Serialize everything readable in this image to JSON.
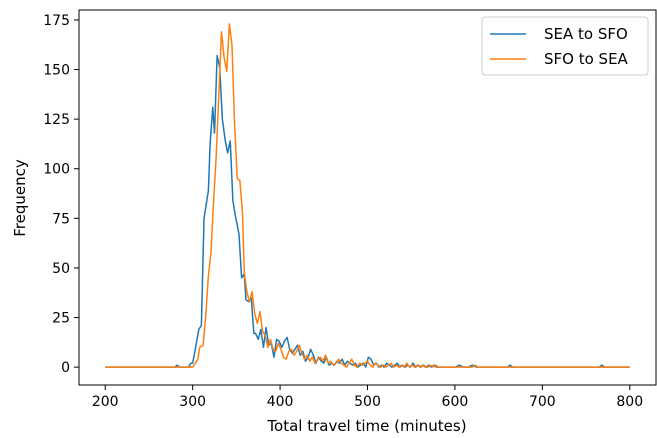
{
  "chart_data": {
    "type": "line",
    "title": "",
    "xlabel": "Total travel time (minutes)",
    "ylabel": "Frequency",
    "xlim": [
      170,
      830
    ],
    "ylim": [
      -9,
      180
    ],
    "xticks": [
      200,
      300,
      400,
      500,
      600,
      700,
      800
    ],
    "yticks": [
      0,
      25,
      50,
      75,
      100,
      125,
      150,
      175
    ],
    "grid": false,
    "legend_position": "top-right",
    "series": [
      {
        "name": "SEA to SFO",
        "color": "#1f77b4",
        "x": [
          200,
          280,
          282,
          285,
          295,
          298,
          300,
          303,
          307,
          310,
          313,
          318,
          320,
          323,
          325,
          328,
          331,
          334,
          337,
          340,
          343,
          346,
          349,
          353,
          356,
          359,
          361,
          364,
          367,
          370,
          372,
          375,
          378,
          381,
          384,
          387,
          390,
          393,
          396,
          399,
          402,
          405,
          408,
          411,
          414,
          417,
          420,
          423,
          426,
          429,
          432,
          435,
          438,
          441,
          444,
          447,
          450,
          453,
          456,
          459,
          462,
          465,
          468,
          471,
          474,
          477,
          480,
          483,
          486,
          489,
          492,
          495,
          498,
          501,
          504,
          507,
          510,
          513,
          516,
          519,
          522,
          525,
          528,
          531,
          534,
          537,
          540,
          543,
          546,
          549,
          552,
          555,
          558,
          561,
          564,
          567,
          570,
          573,
          576,
          579,
          582,
          600,
          605,
          610,
          615,
          620,
          625,
          660,
          663,
          666,
          765,
          768,
          771,
          800
        ],
        "y": [
          0,
          0,
          1,
          0,
          0,
          2,
          2,
          9,
          19,
          21,
          75,
          89,
          113,
          131,
          118,
          157,
          151,
          125,
          115,
          108,
          114,
          84,
          76,
          67,
          45,
          47,
          34,
          33,
          35,
          17,
          17,
          14,
          19,
          10,
          20,
          11,
          12,
          5,
          14,
          13,
          10,
          13,
          15,
          9,
          7,
          9,
          11,
          6,
          8,
          3,
          5,
          9,
          6,
          2,
          5,
          3,
          2,
          5,
          1,
          2,
          1,
          3,
          2,
          4,
          1,
          3,
          2,
          1,
          2,
          0,
          1,
          2,
          0,
          5,
          4,
          1,
          2,
          0,
          1,
          0,
          2,
          1,
          0,
          1,
          2,
          0,
          1,
          0,
          1,
          0,
          2,
          0,
          1,
          0,
          1,
          0,
          1,
          0,
          1,
          0,
          0,
          0,
          1,
          0,
          0,
          1,
          0,
          0,
          1,
          0,
          0,
          1,
          0,
          0
        ]
      },
      {
        "name": "SFO to SEA",
        "color": "#ff7f0e",
        "x": [
          200,
          300,
          303,
          306,
          308,
          312,
          315,
          318,
          321,
          324,
          327,
          330,
          333,
          336,
          339,
          342,
          345,
          348,
          351,
          354,
          357,
          359,
          362,
          365,
          368,
          371,
          374,
          377,
          380,
          383,
          386,
          389,
          392,
          395,
          398,
          401,
          404,
          407,
          410,
          413,
          416,
          419,
          422,
          425,
          428,
          431,
          434,
          437,
          440,
          443,
          446,
          449,
          452,
          455,
          458,
          461,
          464,
          467,
          470,
          473,
          476,
          479,
          482,
          485,
          488,
          491,
          494,
          497,
          500,
          503,
          506,
          509,
          512,
          515,
          518,
          521,
          524,
          527,
          530,
          533,
          536,
          539,
          542,
          545,
          548,
          551,
          554,
          557,
          560,
          563,
          566,
          569,
          572,
          575,
          578,
          581,
          584,
          620,
          623,
          626,
          800
        ],
        "y": [
          0,
          0,
          2,
          4,
          10,
          11,
          26,
          46,
          58,
          84,
          107,
          138,
          169,
          156,
          149,
          173,
          162,
          122,
          95,
          94,
          78,
          48,
          38,
          33,
          38,
          27,
          22,
          28,
          18,
          16,
          10,
          14,
          9,
          8,
          12,
          9,
          5,
          4,
          8,
          9,
          6,
          8,
          11,
          7,
          4,
          6,
          3,
          5,
          2,
          4,
          5,
          3,
          6,
          2,
          3,
          1,
          2,
          4,
          2,
          1,
          0,
          2,
          4,
          1,
          0,
          2,
          1,
          2,
          3,
          1,
          0,
          2,
          1,
          0,
          1,
          0,
          1,
          2,
          0,
          1,
          0,
          1,
          0,
          2,
          0,
          1,
          0,
          1,
          0,
          1,
          0,
          0,
          1,
          0,
          1,
          0,
          0,
          0,
          1,
          0,
          0
        ]
      }
    ]
  }
}
